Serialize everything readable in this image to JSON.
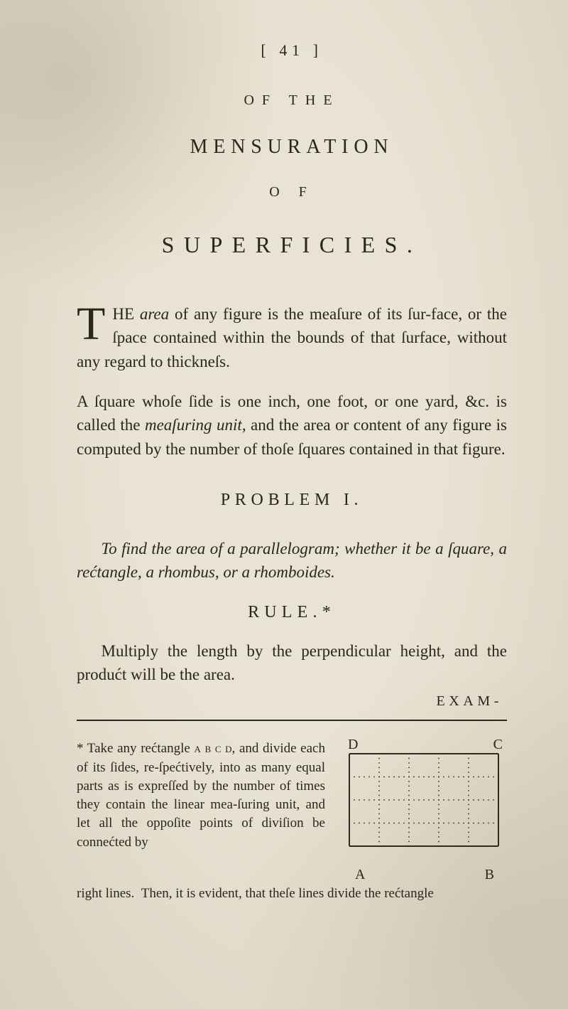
{
  "header": {
    "page_number": "[ 41 ]",
    "of_the": "OF THE",
    "mensuration": "MENSURATION",
    "of": "O F",
    "superficies": "SUPERFICIES."
  },
  "para1_dropcap": "T",
  "para1": "HE area of any figure is the meaſure of its ſur-face, or the ſpace contained within the bounds of that ſurface, without any regard to thickneſs.",
  "para2": "A ſquare whoſe ſide is one inch, one foot, or one yard, &c. is called the meaſuring unit, and the area or content of any figure is computed by the number of thoſe ſquares contained in that figure.",
  "problem": "PROBLEM I.",
  "problem_statement": "To find the area of a parallelogram; whether it be a ſquare, a rectangle, a rhombus, or a rhomboides.",
  "rule": "RULE.*",
  "rule_body": "Multiply the length by the perpendicular height, and the product will be the area.",
  "exam": "EXAM-",
  "footnote": "* Take any rectangle A B C D, and divide each of its ſides, re-ſpectively, into as many equal parts as is expreſſed by the number of times they contain the linear mea-ſuring unit, and let all the oppoſite points of diviſion be connected by",
  "footnote_last": "right lines.  Then, it is evident, that theſe lines divide the rectangle",
  "diagram": {
    "labels": {
      "D": "D",
      "C": "C",
      "A": "A",
      "B": "B"
    },
    "cols": 5,
    "rows": 4,
    "outer_w": 210,
    "outer_h": 130,
    "stroke": "#2e2a20",
    "dot_fill": "#2e2a20"
  }
}
